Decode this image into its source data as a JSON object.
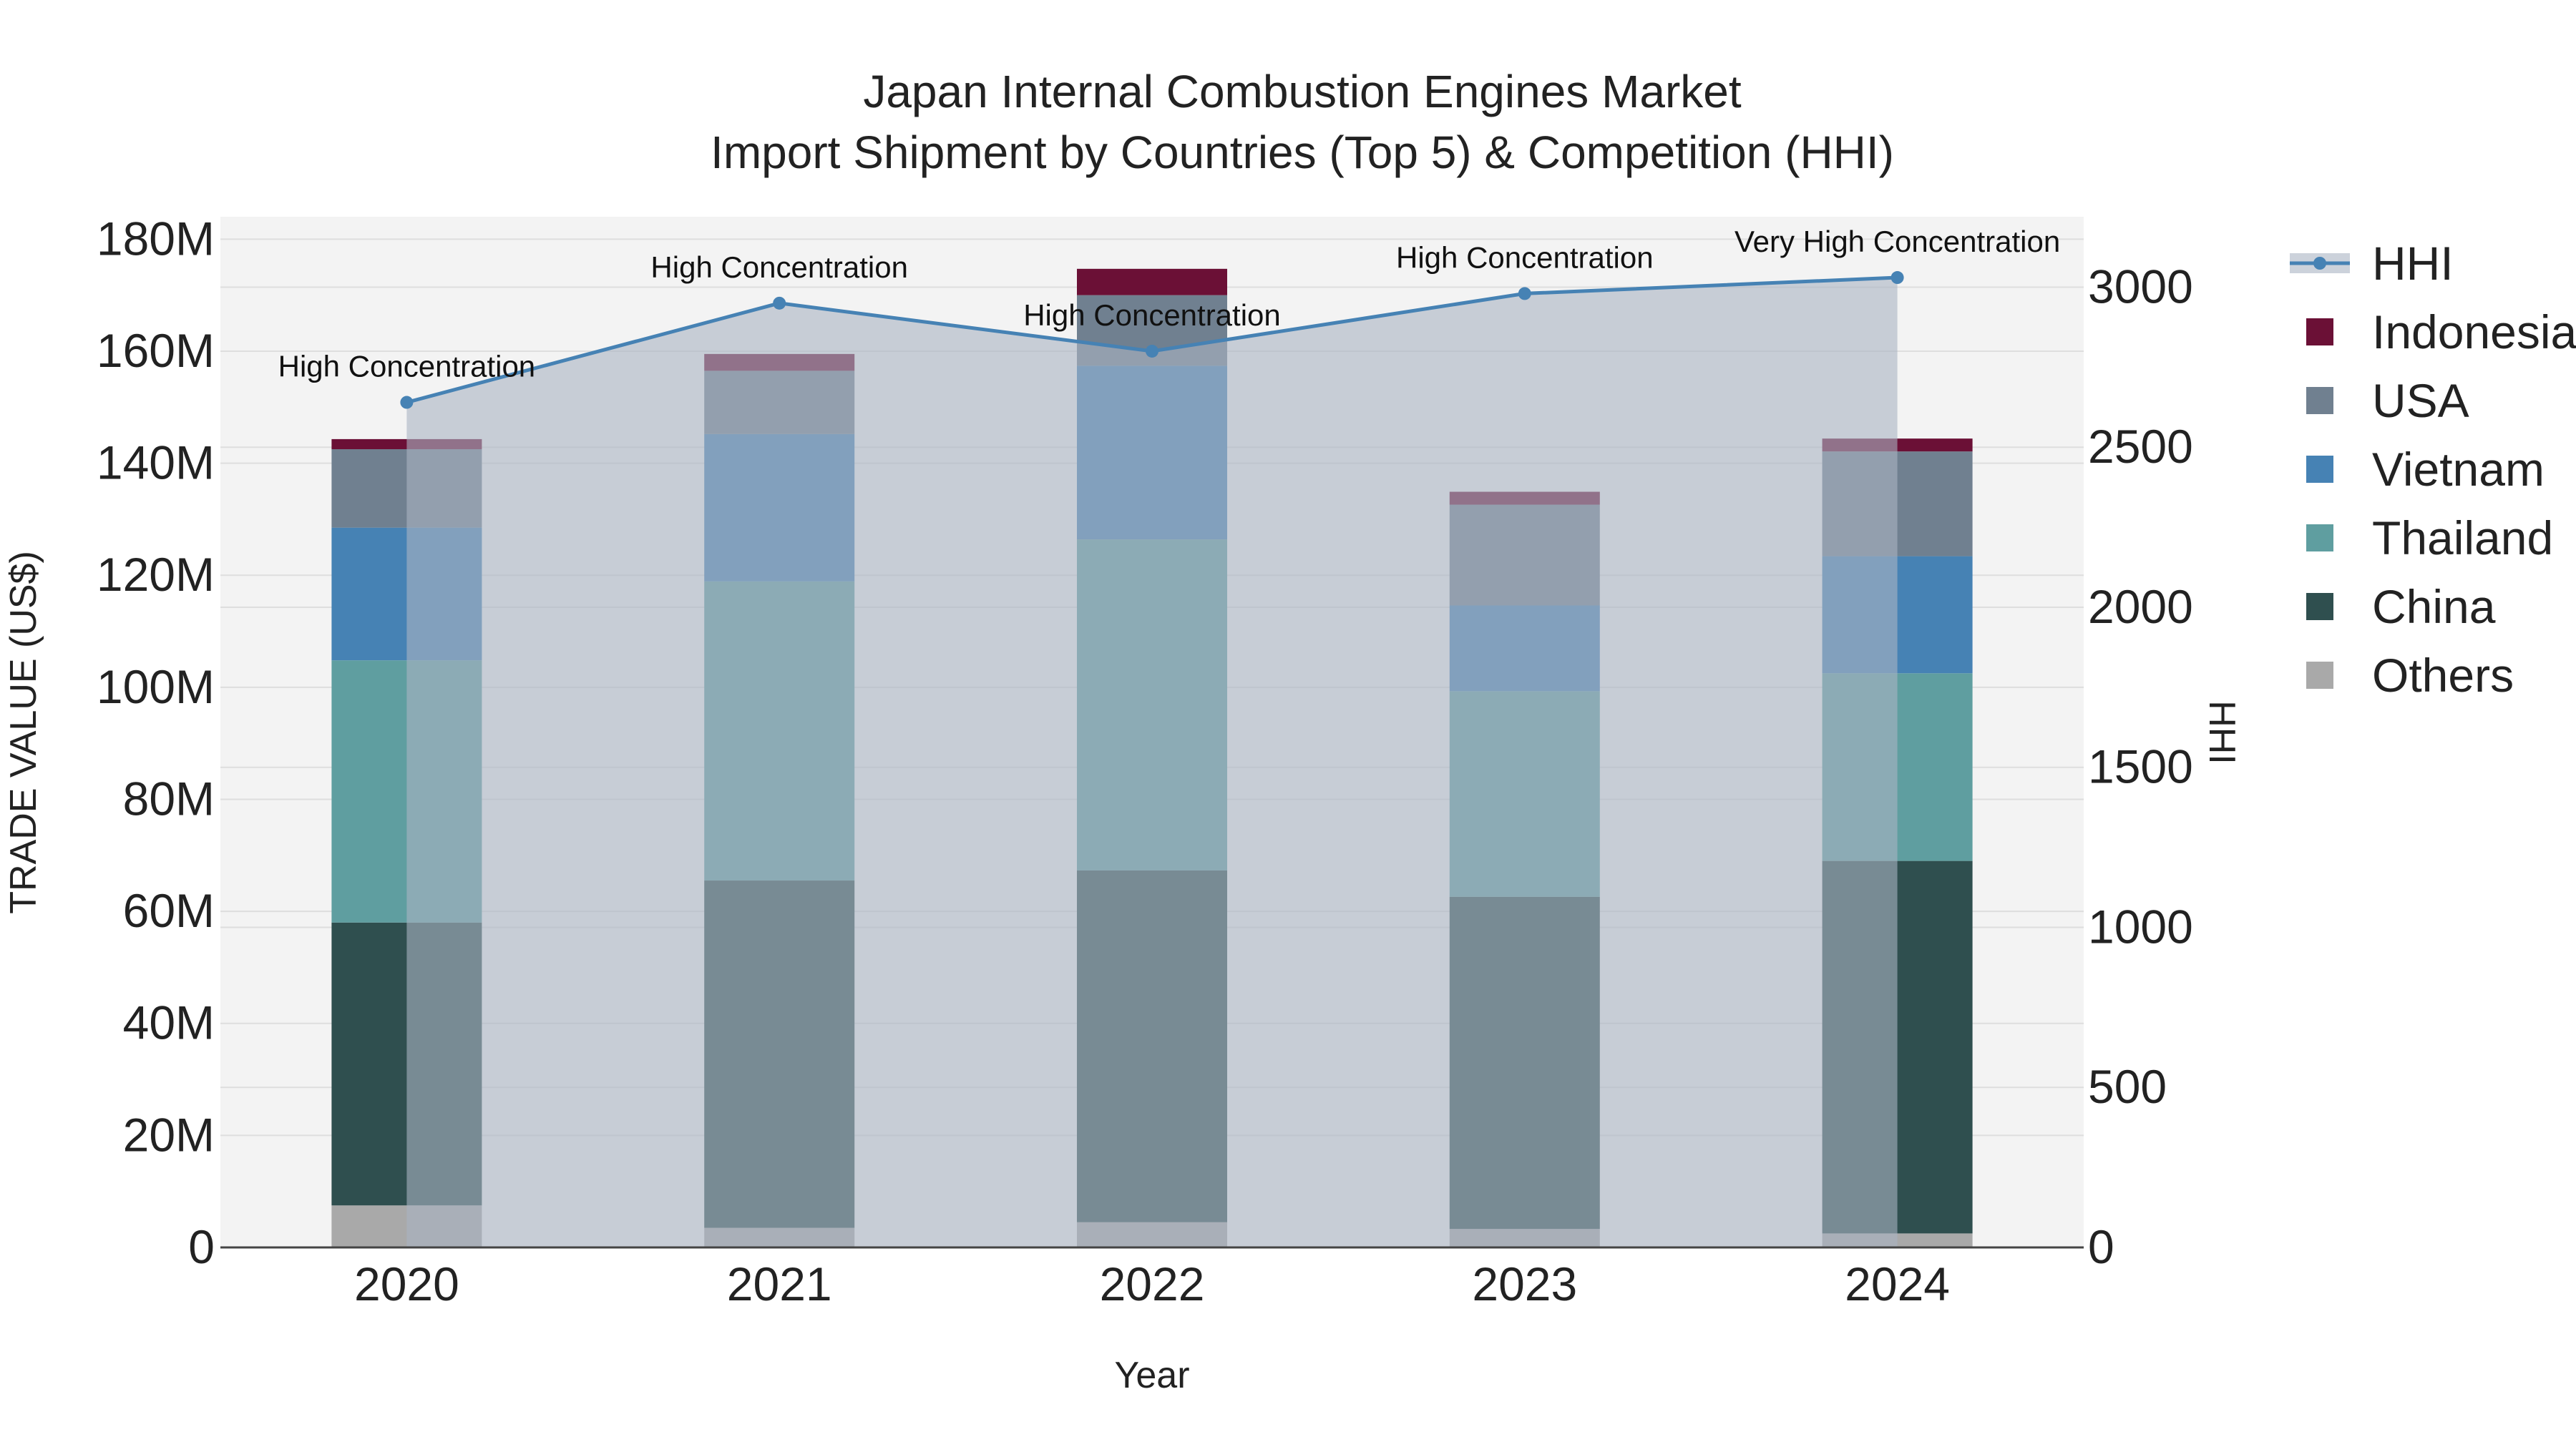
{
  "chart_data": {
    "type": "bar",
    "title": "Japan Internal Combustion Engines Market",
    "subtitle": "Import Shipment by Countries (Top 5) & Competition (HHI)",
    "xlabel": "Year",
    "ylabel": "TRADE VALUE (US$)",
    "y2label": "HHI",
    "categories": [
      "2020",
      "2021",
      "2022",
      "2023",
      "2024"
    ],
    "ylim": [
      0,
      184000000
    ],
    "y2lim": [
      0,
      3220
    ],
    "y_ticks": [
      0,
      20000000,
      40000000,
      60000000,
      80000000,
      100000000,
      120000000,
      140000000,
      160000000,
      180000000
    ],
    "y_tick_labels": [
      "0",
      "20M",
      "40M",
      "60M",
      "80M",
      "100M",
      "120M",
      "140M",
      "160M",
      "180M"
    ],
    "y2_ticks": [
      0,
      500,
      1000,
      1500,
      2000,
      2500,
      3000
    ],
    "y2_tick_labels": [
      "0",
      "500",
      "1000",
      "1500",
      "2000",
      "2500",
      "3000"
    ],
    "series": [
      {
        "name": "Others",
        "color": "#a9a9a9",
        "values": [
          7500000,
          3500000,
          4500000,
          3300000,
          2500000
        ]
      },
      {
        "name": "China",
        "color": "#2f4f4f",
        "values": [
          50500000,
          62000000,
          62800000,
          59300000,
          66500000
        ]
      },
      {
        "name": "Thailand",
        "color": "#5f9ea0",
        "values": [
          46800000,
          53400000,
          59100000,
          36700000,
          33500000
        ]
      },
      {
        "name": "Vietnam",
        "color": "#4682b4",
        "values": [
          23700000,
          26300000,
          31000000,
          15300000,
          20900000
        ]
      },
      {
        "name": "USA",
        "color": "#708090",
        "values": [
          14000000,
          11300000,
          12600000,
          18000000,
          18700000
        ]
      },
      {
        "name": "Indonesia",
        "color": "#6b1036",
        "values": [
          1800000,
          3000000,
          4700000,
          2300000,
          2300000
        ]
      }
    ],
    "hhi": {
      "name": "HHI",
      "color": "#4682b4",
      "values": [
        2640,
        2950,
        2800,
        2980,
        3030
      ],
      "labels": [
        "High Concentration",
        "High Concentration",
        "High Concentration",
        "High Concentration",
        "Very High Concentration"
      ]
    },
    "legend": [
      "HHI",
      "Indonesia",
      "USA",
      "Vietnam",
      "Thailand",
      "China",
      "Others"
    ],
    "legend_position": "right",
    "grid": true
  }
}
